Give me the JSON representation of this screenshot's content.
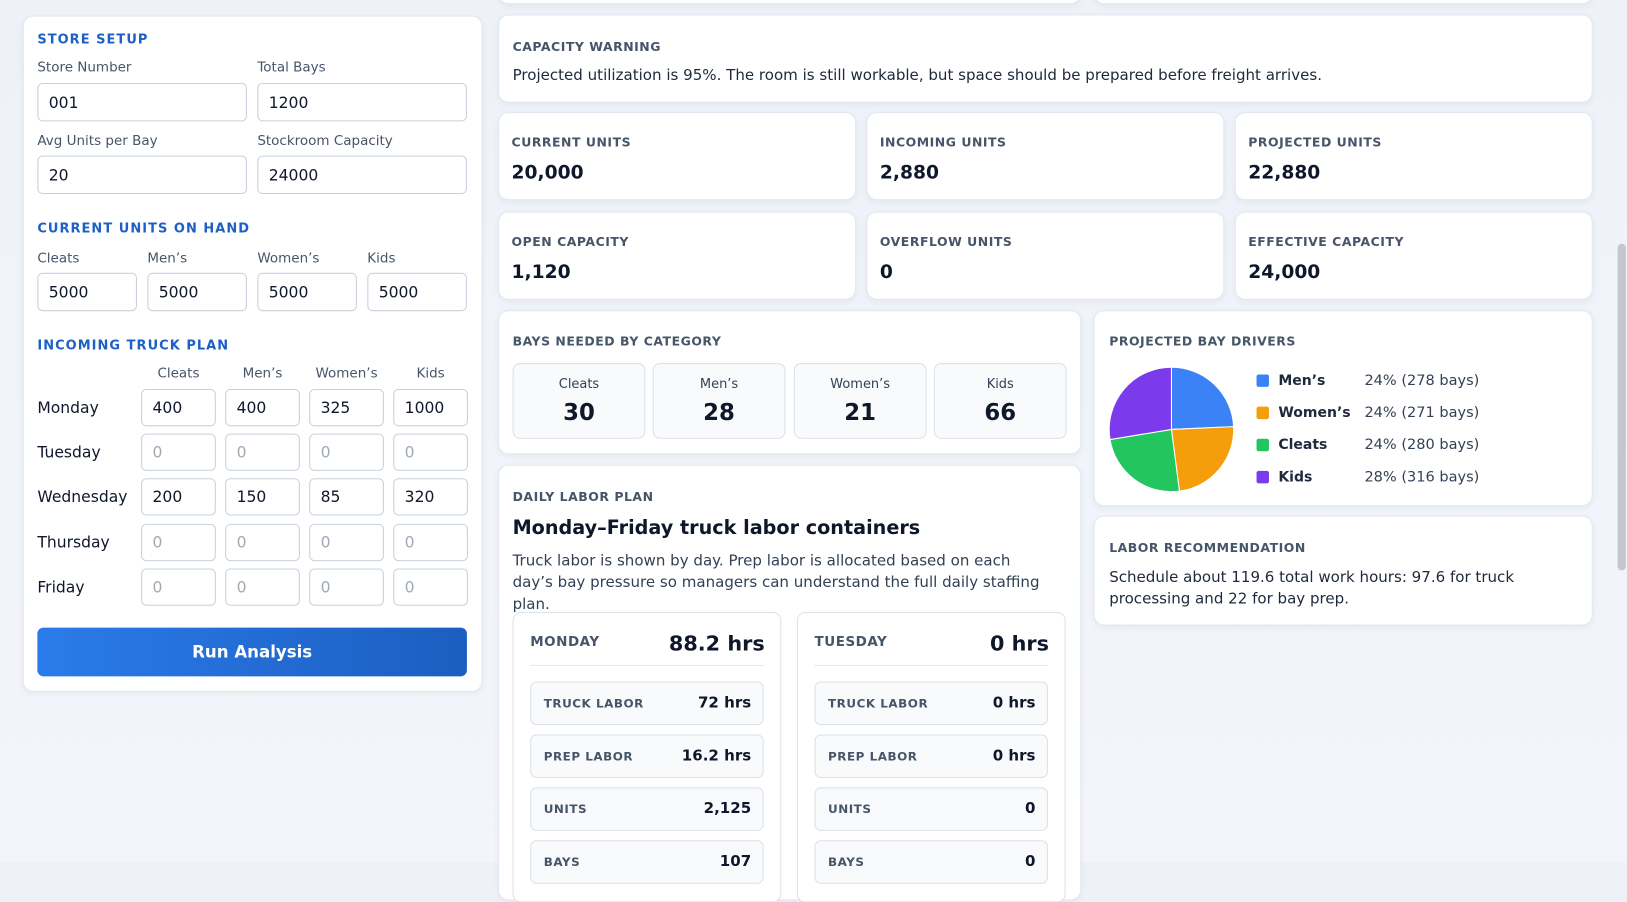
{
  "store_setup": {
    "title": "STORE SETUP",
    "fields": [
      {
        "label": "Store Number",
        "value": "001"
      },
      {
        "label": "Total Bays",
        "value": "1200"
      },
      {
        "label": "Avg Units per Bay",
        "value": "20"
      },
      {
        "label": "Stockroom Capacity",
        "value": "24000"
      }
    ]
  },
  "units_on_hand": {
    "title": "CURRENT UNITS ON HAND",
    "fields": [
      {
        "label": "Cleats",
        "value": "5000"
      },
      {
        "label": "Men’s",
        "value": "5000"
      },
      {
        "label": "Women’s",
        "value": "5000"
      },
      {
        "label": "Kids",
        "value": "5000"
      }
    ]
  },
  "truck_plan": {
    "title": "INCOMING TRUCK PLAN",
    "columns": [
      "Cleats",
      "Men’s",
      "Women’s",
      "Kids"
    ],
    "rows": [
      {
        "day": "Monday",
        "values": [
          "400",
          "400",
          "325",
          "1000"
        ]
      },
      {
        "day": "Tuesday",
        "placeholders": [
          "0",
          "0",
          "0",
          "0"
        ]
      },
      {
        "day": "Wednesday",
        "values": [
          "200",
          "150",
          "85",
          "320"
        ]
      },
      {
        "day": "Thursday",
        "placeholders": [
          "0",
          "0",
          "0",
          "0"
        ]
      },
      {
        "day": "Friday",
        "placeholders": [
          "0",
          "0",
          "0",
          "0"
        ]
      }
    ]
  },
  "run_button": "Run Analysis",
  "capacity_warning": {
    "title": "CAPACITY WARNING",
    "text": "Projected utilization is 95%. The room is still workable, but space should be prepared before freight arrives."
  },
  "stats": [
    {
      "label": "CURRENT UNITS",
      "value": "20,000"
    },
    {
      "label": "INCOMING UNITS",
      "value": "2,880"
    },
    {
      "label": "PROJECTED UNITS",
      "value": "22,880"
    },
    {
      "label": "OPEN CAPACITY",
      "value": "1,120"
    },
    {
      "label": "OVERFLOW UNITS",
      "value": "0"
    },
    {
      "label": "EFFECTIVE CAPACITY",
      "value": "24,000"
    }
  ],
  "bays_needed": {
    "title": "BAYS NEEDED BY CATEGORY",
    "items": [
      {
        "label": "Cleats",
        "value": "30"
      },
      {
        "label": "Men’s",
        "value": "28"
      },
      {
        "label": "Women’s",
        "value": "21"
      },
      {
        "label": "Kids",
        "value": "66"
      }
    ]
  },
  "bay_drivers": {
    "title": "PROJECTED BAY DRIVERS",
    "slices": [
      {
        "name": "Men’s",
        "color": "#3b82f6",
        "bays": 278,
        "label": "24% (278 bays)"
      },
      {
        "name": "Women’s",
        "color": "#f59e0b",
        "bays": 271,
        "label": "24% (271 bays)"
      },
      {
        "name": "Cleats",
        "color": "#22c55e",
        "bays": 280,
        "label": "24% (280 bays)"
      },
      {
        "name": "Kids",
        "color": "#7c3aed",
        "bays": 316,
        "label": "28% (316 bays)"
      }
    ]
  },
  "labor_recommendation": {
    "title": "LABOR RECOMMENDATION",
    "text": "Schedule about 119.6 total work hours: 97.6 for truck processing and 22 for bay prep."
  },
  "daily_labor": {
    "title": "DAILY LABOR PLAN",
    "heading": "Monday–Friday truck labor containers",
    "description": "Truck labor is shown by day. Prep labor is allocated based on each day’s bay pressure so managers can understand the full daily staffing plan.",
    "days": [
      {
        "day": "MONDAY",
        "total": "88.2 hrs",
        "rows": [
          {
            "label": "TRUCK LABOR",
            "value": "72 hrs"
          },
          {
            "label": "PREP LABOR",
            "value": "16.2 hrs"
          },
          {
            "label": "UNITS",
            "value": "2,125"
          },
          {
            "label": "BAYS",
            "value": "107"
          }
        ]
      },
      {
        "day": "TUESDAY",
        "total": "0 hrs",
        "rows": [
          {
            "label": "TRUCK LABOR",
            "value": "0 hrs"
          },
          {
            "label": "PREP LABOR",
            "value": "0 hrs"
          },
          {
            "label": "UNITS",
            "value": "0"
          },
          {
            "label": "BAYS",
            "value": "0"
          }
        ]
      }
    ]
  }
}
